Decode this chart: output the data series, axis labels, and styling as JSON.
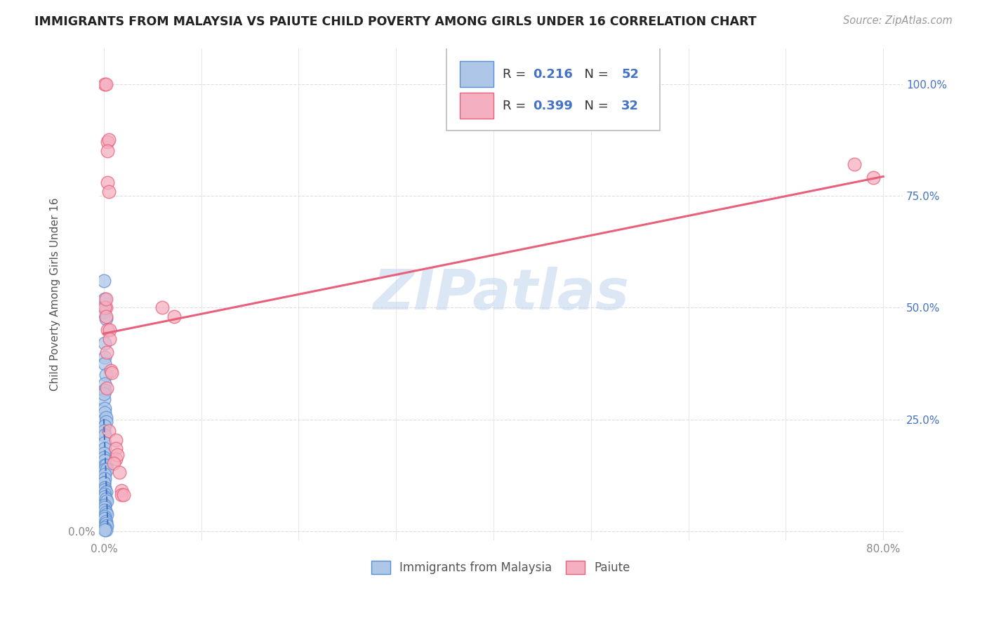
{
  "title": "IMMIGRANTS FROM MALAYSIA VS PAIUTE CHILD POVERTY AMONG GIRLS UNDER 16 CORRELATION CHART",
  "source": "Source: ZipAtlas.com",
  "ylabel": "Child Poverty Among Girls Under 16",
  "legend_bottom": [
    "Immigrants from Malaysia",
    "Paiute"
  ],
  "blue_R": 0.216,
  "blue_N": 52,
  "pink_R": 0.399,
  "pink_N": 32,
  "blue_color": "#aec6e8",
  "pink_color": "#f4afc0",
  "blue_edge_color": "#5b8fd4",
  "pink_edge_color": "#e8607a",
  "blue_line_color": "#4472c4",
  "pink_line_color": "#e8607a",
  "watermark": "ZIPatlas",
  "watermark_color": "#c5d8ef",
  "title_color": "#222222",
  "grid_color": "#dddddd",
  "tick_color": "#888888",
  "right_tick_color": "#4472c4",
  "blue_scatter": [
    [
      0.0,
      0.56
    ],
    [
      0.0,
      0.49
    ],
    [
      0.001,
      0.52
    ],
    [
      0.002,
      0.475
    ],
    [
      0.001,
      0.42
    ],
    [
      0.001,
      0.39
    ],
    [
      0.001,
      0.375
    ],
    [
      0.002,
      0.35
    ],
    [
      0.001,
      0.33
    ],
    [
      0.001,
      0.315
    ],
    [
      0.0,
      0.295
    ],
    [
      0.0,
      0.308
    ],
    [
      0.001,
      0.275
    ],
    [
      0.001,
      0.265
    ],
    [
      0.002,
      0.255
    ],
    [
      0.002,
      0.245
    ],
    [
      0.001,
      0.235
    ],
    [
      0.0,
      0.225
    ],
    [
      0.001,
      0.215
    ],
    [
      0.001,
      0.198
    ],
    [
      0.001,
      0.185
    ],
    [
      0.0,
      0.175
    ],
    [
      0.0,
      0.165
    ],
    [
      0.001,
      0.158
    ],
    [
      0.001,
      0.148
    ],
    [
      0.002,
      0.148
    ],
    [
      0.001,
      0.138
    ],
    [
      0.003,
      0.138
    ],
    [
      0.001,
      0.128
    ],
    [
      0.001,
      0.118
    ],
    [
      0.0,
      0.108
    ],
    [
      0.0,
      0.108
    ],
    [
      0.001,
      0.098
    ],
    [
      0.001,
      0.093
    ],
    [
      0.002,
      0.088
    ],
    [
      0.001,
      0.083
    ],
    [
      0.001,
      0.078
    ],
    [
      0.002,
      0.073
    ],
    [
      0.003,
      0.068
    ],
    [
      0.001,
      0.058
    ],
    [
      0.001,
      0.053
    ],
    [
      0.001,
      0.048
    ],
    [
      0.002,
      0.043
    ],
    [
      0.003,
      0.038
    ],
    [
      0.001,
      0.033
    ],
    [
      0.001,
      0.028
    ],
    [
      0.002,
      0.023
    ],
    [
      0.002,
      0.018
    ],
    [
      0.003,
      0.013
    ],
    [
      0.001,
      0.008
    ],
    [
      0.002,
      0.003
    ],
    [
      0.001,
      0.003
    ]
  ],
  "pink_scatter": [
    [
      0.001,
      1.0
    ],
    [
      0.002,
      1.0
    ],
    [
      0.004,
      0.87
    ],
    [
      0.005,
      0.875
    ],
    [
      0.004,
      0.78
    ],
    [
      0.005,
      0.76
    ],
    [
      0.004,
      0.85
    ],
    [
      0.002,
      0.5
    ],
    [
      0.001,
      0.5
    ],
    [
      0.002,
      0.52
    ],
    [
      0.002,
      0.48
    ],
    [
      0.004,
      0.45
    ],
    [
      0.006,
      0.45
    ],
    [
      0.003,
      0.4
    ],
    [
      0.007,
      0.36
    ],
    [
      0.008,
      0.355
    ],
    [
      0.003,
      0.32
    ],
    [
      0.006,
      0.43
    ],
    [
      0.005,
      0.225
    ],
    [
      0.012,
      0.205
    ],
    [
      0.012,
      0.185
    ],
    [
      0.012,
      0.162
    ],
    [
      0.014,
      0.172
    ],
    [
      0.01,
      0.152
    ],
    [
      0.016,
      0.132
    ],
    [
      0.018,
      0.092
    ],
    [
      0.018,
      0.082
    ],
    [
      0.02,
      0.082
    ],
    [
      0.06,
      0.5
    ],
    [
      0.072,
      0.48
    ],
    [
      0.77,
      0.82
    ],
    [
      0.79,
      0.79
    ]
  ],
  "xmin": 0.0,
  "xmax": 0.8,
  "ymin": 0.0,
  "ymax": 1.05,
  "xtick_positions": [
    0.0,
    0.1,
    0.2,
    0.3,
    0.4,
    0.5,
    0.6,
    0.7,
    0.8
  ],
  "xtick_labels_shown": [
    "0.0%",
    "",
    "",
    "",
    "",
    "",
    "",
    "",
    "80.0%"
  ],
  "ytick_positions": [
    0.0,
    0.25,
    0.5,
    0.75,
    1.0
  ],
  "ytick_labels_left": [
    "0.0%",
    "",
    "",
    "",
    ""
  ],
  "ytick_labels_right": [
    "",
    "25.0%",
    "50.0%",
    "75.0%",
    "100.0%"
  ]
}
